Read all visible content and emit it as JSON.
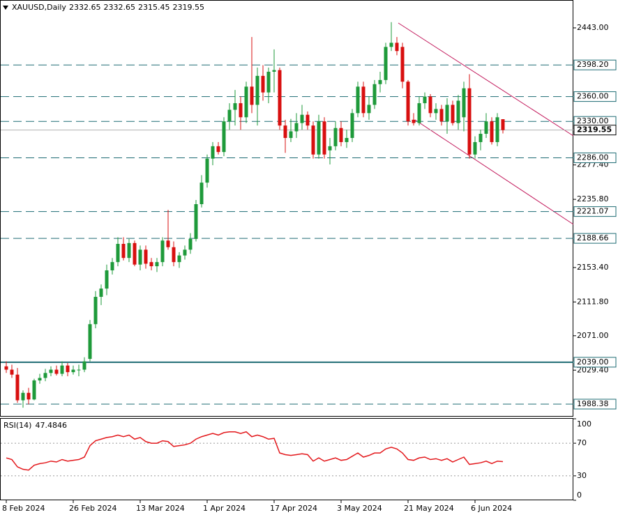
{
  "chart_data": [
    {
      "type": "candlestick",
      "title": "XAUUSD,Daily",
      "categories": [
        "8 Feb 2024",
        null,
        null,
        null,
        null,
        null,
        null,
        null,
        null,
        null,
        null,
        null,
        "26 Feb 2024",
        null,
        null,
        null,
        null,
        null,
        null,
        null,
        null,
        null,
        null,
        null,
        "13 Mar 2024",
        null,
        null,
        null,
        null,
        null,
        null,
        null,
        null,
        null,
        null,
        null,
        "1 Apr 2024",
        null,
        null,
        null,
        null,
        null,
        null,
        null,
        null,
        null,
        null,
        null,
        "17 Apr 2024",
        null,
        null,
        null,
        null,
        null,
        null,
        null,
        null,
        null,
        null,
        null,
        "3 May 2024",
        null,
        null,
        null,
        null,
        null,
        null,
        null,
        null,
        null,
        null,
        null,
        "21 May 2024",
        null,
        null,
        null,
        null,
        null,
        null,
        null,
        null,
        null,
        null,
        null,
        "6 Jun 2024",
        null,
        null,
        null,
        null,
        null
      ],
      "open": [
        2034,
        2030,
        2024,
        1993,
        2002,
        1994,
        2017,
        2020,
        2026,
        2030,
        2025,
        2035,
        2027,
        2030,
        2030,
        2043,
        2085,
        2118,
        2128,
        2150,
        2160,
        2182,
        2165,
        2183,
        2157,
        2175,
        2160,
        2155,
        2160,
        2186,
        2178,
        2160,
        2168,
        2175,
        2188,
        2230,
        2256,
        2285,
        2300,
        2293,
        2330,
        2344,
        2352,
        2335,
        2372,
        2350,
        2385,
        2365,
        2390,
        2392,
        2325,
        2310,
        2318,
        2328,
        2338,
        2325,
        2290,
        2330,
        2295,
        2300,
        2322,
        2305,
        2310,
        2340,
        2372,
        2340,
        2350,
        2375,
        2380,
        2420,
        2425,
        2420,
        2378,
        2332,
        2328,
        2352,
        2360,
        2340,
        2345,
        2330,
        2350,
        2328,
        2335,
        2370,
        2290,
        2305,
        2315,
        2330,
        2305,
        2332.65
      ],
      "high": [
        2040,
        2036,
        2032,
        2005,
        2008,
        2019,
        2025,
        2031,
        2034,
        2035,
        2040,
        2038,
        2035,
        2036,
        2045,
        2090,
        2125,
        2133,
        2157,
        2165,
        2190,
        2190,
        2188,
        2186,
        2180,
        2180,
        2165,
        2165,
        2190,
        2223,
        2185,
        2172,
        2180,
        2195,
        2235,
        2265,
        2290,
        2305,
        2305,
        2335,
        2352,
        2368,
        2360,
        2378,
        2432,
        2395,
        2398,
        2395,
        2417,
        2395,
        2332,
        2333,
        2340,
        2350,
        2342,
        2330,
        2338,
        2335,
        2310,
        2330,
        2330,
        2320,
        2345,
        2378,
        2378,
        2360,
        2380,
        2390,
        2425,
        2450,
        2432,
        2425,
        2380,
        2340,
        2360,
        2365,
        2363,
        2352,
        2350,
        2358,
        2355,
        2362,
        2378,
        2387,
        2312,
        2320,
        2340,
        2335,
        2340,
        2332.65
      ],
      "low": [
        2026,
        2020,
        1990,
        1984,
        1988,
        1993,
        2013,
        2016,
        2022,
        2023,
        2022,
        2022,
        2024,
        2022,
        2027,
        2040,
        2080,
        2108,
        2120,
        2145,
        2155,
        2162,
        2160,
        2155,
        2150,
        2152,
        2150,
        2148,
        2155,
        2175,
        2155,
        2153,
        2163,
        2170,
        2185,
        2226,
        2250,
        2277,
        2290,
        2288,
        2320,
        2325,
        2320,
        2328,
        2340,
        2325,
        2355,
        2352,
        2365,
        2320,
        2292,
        2305,
        2310,
        2320,
        2320,
        2285,
        2285,
        2285,
        2278,
        2295,
        2300,
        2298,
        2305,
        2335,
        2335,
        2332,
        2345,
        2365,
        2375,
        2415,
        2410,
        2370,
        2325,
        2325,
        2325,
        2345,
        2335,
        2332,
        2325,
        2315,
        2325,
        2320,
        2318,
        2285,
        2285,
        2295,
        2310,
        2302,
        2300,
        2315.45
      ],
      "close": [
        2030,
        2024,
        1993,
        2002,
        1994,
        2017,
        2020,
        2026,
        2030,
        2025,
        2035,
        2027,
        2030,
        2030,
        2040,
        2085,
        2118,
        2128,
        2150,
        2160,
        2182,
        2165,
        2183,
        2157,
        2175,
        2158,
        2155,
        2160,
        2186,
        2178,
        2160,
        2168,
        2175,
        2188,
        2230,
        2256,
        2285,
        2300,
        2293,
        2330,
        2344,
        2352,
        2335,
        2372,
        2350,
        2385,
        2365,
        2390,
        2392,
        2325,
        2310,
        2318,
        2328,
        2338,
        2325,
        2290,
        2330,
        2290,
        2300,
        2322,
        2305,
        2310,
        2340,
        2372,
        2340,
        2350,
        2375,
        2380,
        2420,
        2425,
        2415,
        2378,
        2330,
        2328,
        2352,
        2360,
        2340,
        2345,
        2330,
        2350,
        2328,
        2355,
        2370,
        2290,
        2305,
        2315,
        2330,
        2305,
        2335,
        2319.55
      ],
      "up_color": "#1e9a3a",
      "down_color": "#d80f0f",
      "price_line_color": "#b0b0b0",
      "ylim": [
        1974.05,
        2475
      ],
      "yticks": [
        {
          "value": 2443,
          "label": "2443.00"
        },
        {
          "value": 2277.4,
          "label": "2277.40"
        },
        {
          "value": 2235.8,
          "label": "2235.80"
        },
        {
          "value": 2153.4,
          "label": "2153.40"
        },
        {
          "value": 2111.8,
          "label": "2111.80"
        },
        {
          "value": 2071,
          "label": "2071.00"
        },
        {
          "value": 2029.4,
          "label": "2029.40"
        }
      ],
      "levels": [
        {
          "value": 2398.2,
          "label": "2398.20",
          "style": "dashed"
        },
        {
          "value": 2360,
          "label": "2360.00",
          "style": "dashed"
        },
        {
          "value": 2330,
          "label": "2330.00",
          "style": "dashed"
        },
        {
          "value": 2286,
          "label": "2286.00",
          "style": "dashed"
        },
        {
          "value": 2221.07,
          "label": "2221.07",
          "style": "dashed"
        },
        {
          "value": 2188.66,
          "label": "2188.66",
          "style": "dashed"
        },
        {
          "value": 2039,
          "label": "2039.00",
          "style": "solid"
        },
        {
          "value": 1988.38,
          "label": "1988.38",
          "style": "dashed"
        }
      ],
      "level_color": "#1d6b73"
    },
    {
      "type": "line",
      "title": "RSI(14)",
      "values": [
        52,
        50,
        41,
        38,
        37,
        43,
        45,
        46,
        48,
        47,
        50,
        48,
        49,
        50,
        53,
        67,
        73,
        75,
        77,
        78,
        80,
        78,
        80,
        75,
        77,
        72,
        70,
        70,
        73,
        72,
        66,
        67,
        68,
        70,
        75,
        78,
        80,
        82,
        80,
        83,
        84,
        84,
        82,
        84,
        78,
        80,
        78,
        75,
        76,
        58,
        56,
        55,
        56,
        57,
        56,
        48,
        52,
        48,
        50,
        52,
        49,
        50,
        54,
        58,
        53,
        55,
        58,
        58,
        63,
        65,
        63,
        58,
        50,
        49,
        52,
        53,
        50,
        51,
        49,
        51,
        47,
        50,
        53,
        44,
        45,
        46,
        48,
        45,
        48,
        47.4846
      ],
      "color": "#e3171b",
      "ylim": [
        0,
        100
      ],
      "yticks": [
        0,
        30,
        70,
        100
      ],
      "dotted_levels": [
        30,
        70
      ]
    }
  ]
}
